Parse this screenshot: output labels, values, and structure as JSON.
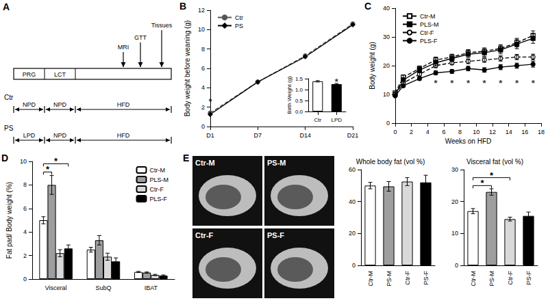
{
  "diagram": {
    "panel": "A",
    "timeline": [
      "PRG",
      "LCT"
    ],
    "events": [
      "MRI",
      "GTT",
      "Tissues"
    ],
    "groups": [
      {
        "name": "Ctr",
        "phases": [
          "NPD",
          "NPD",
          "HFD"
        ]
      },
      {
        "name": "PS",
        "phases": [
          "LPD",
          "NPD",
          "HFD"
        ]
      }
    ]
  },
  "images": {
    "panel": "E",
    "labels": [
      "Ctr-M",
      "PS-M",
      "Ctr-F",
      "PS-F"
    ]
  },
  "chart_data": [
    {
      "panel": "B",
      "type": "line",
      "y_label": "Body weight before weaning (g)",
      "categories": [
        "D1",
        "D7",
        "D14",
        "D21"
      ],
      "ylim": [
        0,
        12
      ],
      "yticks": [
        0,
        2,
        4,
        6,
        8,
        10,
        12
      ],
      "legend": "top-left",
      "series": [
        {
          "name": "Ctr",
          "color": "#555555",
          "line_style": "dashed",
          "marker": "circle",
          "values": [
            1.4,
            4.6,
            7.3,
            10.6
          ]
        },
        {
          "name": "PS",
          "color": "#000000",
          "line_style": "solid",
          "marker": "diamond",
          "values": [
            1.25,
            4.6,
            7.2,
            10.5
          ]
        }
      ],
      "annotations": [
        {
          "text": "*",
          "x": "D1",
          "y": 2.6
        }
      ]
    },
    {
      "type": "bar",
      "y_label": "Birth Weight (g)",
      "categories": [
        "Ctr",
        "LPD"
      ],
      "values": [
        1.38,
        1.25
      ],
      "errors": [
        0.03,
        0.03
      ],
      "colors": [
        "#ffffff",
        "#000000"
      ],
      "ylim": [
        0,
        1.5
      ],
      "yticks": [
        {
          "value": 0,
          "label": "0.0"
        },
        {
          "value": 0.5,
          "label": "0.5"
        },
        {
          "value": 1,
          "label": "1.0"
        },
        {
          "value": 1.5,
          "label": "1.5"
        }
      ],
      "annotations": [
        {
          "text": "*",
          "x": "LPD",
          "y": 1.37
        }
      ]
    },
    {
      "panel": "C",
      "type": "line",
      "x_label": "Weeks on HFD",
      "y_label": "Body weight (g)",
      "x": [
        0,
        1,
        3,
        5,
        7,
        9,
        11,
        13,
        15,
        17
      ],
      "xlim": [
        0,
        18
      ],
      "xticks": [
        0,
        2,
        4,
        6,
        8,
        10,
        12,
        14,
        16,
        18
      ],
      "ylim": [
        0,
        40
      ],
      "yticks": [
        0,
        10,
        20,
        30,
        40
      ],
      "legend": "top-left",
      "series": [
        {
          "name": "Ctr-M",
          "color": "#000000",
          "line_style": "dashed",
          "marker": "open-square",
          "values": [
            10.5,
            16,
            19,
            22,
            23,
            24.5,
            25,
            26,
            28,
            30.5
          ],
          "errors": [
            0.5,
            0.8,
            0.9,
            1,
            1,
            1.1,
            1.2,
            1.3,
            1.5,
            1.6
          ]
        },
        {
          "name": "PLS-M",
          "color": "#000000",
          "line_style": "solid",
          "marker": "square",
          "values": [
            10,
            15,
            18.5,
            21,
            22.5,
            24,
            24.5,
            25.5,
            27.5,
            29.5
          ],
          "errors": [
            0.5,
            0.8,
            0.9,
            1,
            1.1,
            1.2,
            1.3,
            1.4,
            1.6,
            1.7
          ]
        },
        {
          "name": "Ctr-F",
          "color": "#000000",
          "line_style": "dashed",
          "marker": "open-circle",
          "values": [
            10,
            14,
            17,
            20,
            21,
            21.5,
            22,
            22.5,
            23,
            23
          ],
          "errors": [
            0.4,
            0.5,
            0.6,
            0.7,
            0.7,
            0.8,
            0.8,
            0.9,
            0.9,
            1
          ]
        },
        {
          "name": "PLS-F",
          "color": "#000000",
          "line_style": "solid",
          "marker": "circle",
          "values": [
            9.5,
            13,
            15.5,
            17.5,
            18,
            19,
            18.5,
            19.5,
            20,
            20.5
          ],
          "errors": [
            0.4,
            0.5,
            0.6,
            0.7,
            0.7,
            0.8,
            0.8,
            0.9,
            0.9,
            1
          ]
        }
      ],
      "annotations": [
        {
          "text": "*",
          "x": 5,
          "y": 14
        },
        {
          "text": "*",
          "x": 7,
          "y": 14
        },
        {
          "text": "*",
          "x": 9,
          "y": 14
        },
        {
          "text": "*",
          "x": 11,
          "y": 14
        },
        {
          "text": "*",
          "x": 13,
          "y": 14
        },
        {
          "text": "*",
          "x": 15,
          "y": 14
        },
        {
          "text": "*",
          "x": 17,
          "y": 14
        }
      ]
    },
    {
      "panel": "D",
      "type": "bar",
      "y_label": "Fat pad/ Body weight (%)",
      "categories": [
        "Visceral",
        "SubQ",
        "IBAT"
      ],
      "ylim": [
        0,
        10
      ],
      "yticks": [
        0,
        2,
        4,
        6,
        8,
        10
      ],
      "legend": "top-right",
      "series": [
        {
          "name": "Ctr-M",
          "color": "#ffffff",
          "values": [
            5.0,
            2.5,
            0.6
          ],
          "errors": [
            0.3,
            0.2,
            0.05
          ]
        },
        {
          "name": "PLS-M",
          "color": "#9e9e9e",
          "values": [
            8.0,
            3.3,
            0.55
          ],
          "errors": [
            0.8,
            0.4,
            0.05
          ]
        },
        {
          "name": "Ctr-F",
          "color": "#d9d9d9",
          "values": [
            2.2,
            1.9,
            0.35
          ],
          "errors": [
            0.3,
            0.3,
            0.05
          ]
        },
        {
          "name": "PLS-F",
          "color": "#000000",
          "values": [
            2.6,
            1.5,
            0.3
          ],
          "errors": [
            0.3,
            0.3,
            0.05
          ]
        }
      ],
      "brackets": [
        {
          "category": "Visceral",
          "from": "Ctr-M",
          "to": "PLS-M",
          "y": 9.1,
          "text": "*"
        },
        {
          "category": "Visceral",
          "from": "Ctr-M",
          "to": "PLS-F",
          "y": 9.8,
          "text": "*"
        }
      ]
    },
    {
      "type": "bar",
      "title": "Whole body fat (vol %)",
      "categories": [
        "Ctr-M",
        "PS-M",
        "Ctr-F",
        "PS-F"
      ],
      "values": [
        50,
        49.5,
        52.5,
        52
      ],
      "errors": [
        2,
        3,
        2.5,
        4.5
      ],
      "colors": [
        "#ffffff",
        "#9e9e9e",
        "#d9d9d9",
        "#000000"
      ],
      "ylim": [
        0,
        60
      ],
      "yticks": [
        0,
        20,
        40,
        60
      ]
    },
    {
      "type": "bar",
      "title": "Visceral fat (vol %)",
      "categories": [
        "Ctr-M",
        "PS-M",
        "Ctr-F",
        "PS-F"
      ],
      "values": [
        17,
        23,
        14.5,
        15.5
      ],
      "errors": [
        0.8,
        1,
        0.6,
        1.2
      ],
      "colors": [
        "#ffffff",
        "#9e9e9e",
        "#d9d9d9",
        "#000000"
      ],
      "ylim": [
        0,
        30
      ],
      "yticks": [
        0,
        10,
        20,
        30
      ],
      "brackets": [
        {
          "from": "Ctr-M",
          "to": "PS-M",
          "y": 25,
          "text": "*"
        },
        {
          "from": "Ctr-M",
          "to": "Ctr-F",
          "y": 27.5,
          "text": "*"
        }
      ]
    }
  ]
}
